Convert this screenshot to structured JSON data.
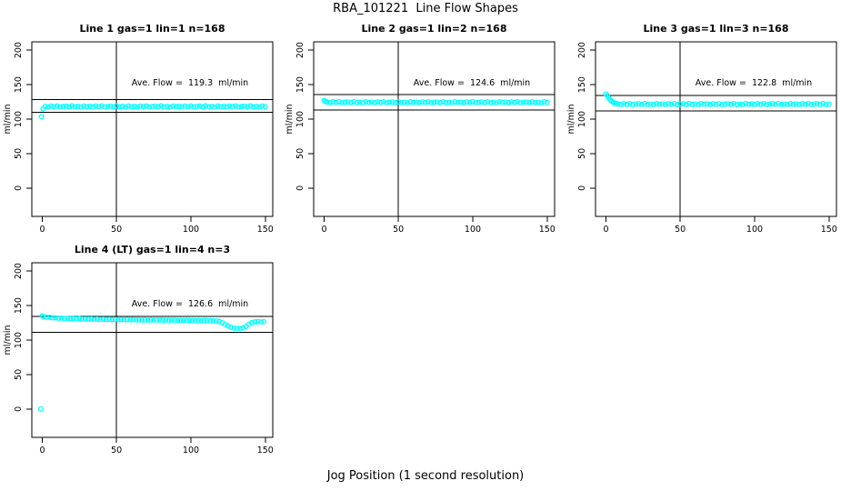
{
  "title": "RBA_101221  Line Flow Shapes",
  "xlabel": "Jog Position (1 second resolution)",
  "ylabel": "ml/min",
  "point_color": "#00FFFF",
  "axis_color": "#000000",
  "background_color": "#FFFFFF",
  "chart_data": [
    {
      "type": "scatter",
      "title": "Line 1 gas=1 lin=1 n=168",
      "ave_flow": 119.3,
      "ave_flow_label": "Ave. Flow =  119.3  ml/min",
      "n": 168,
      "marker": "open-circle",
      "xticks": [
        0,
        50,
        100,
        150
      ],
      "yticks": [
        0,
        50,
        100,
        150,
        200
      ],
      "xlim": [
        -7,
        155
      ],
      "ylim": [
        -41,
        212
      ],
      "vline_x": 50,
      "ref_lines": [
        128.2,
        109.8
      ],
      "points": [
        [
          -0.5,
          103.5
        ],
        [
          0.5,
          114.8
        ],
        [
          2,
          118.5
        ],
        [
          4,
          117.7
        ],
        [
          6,
          118.8
        ],
        [
          8,
          118.0
        ],
        [
          10,
          119.0
        ],
        [
          12,
          117.5
        ],
        [
          14,
          118.3
        ],
        [
          16,
          118.7
        ],
        [
          18,
          117.8
        ],
        [
          20,
          119.1
        ],
        [
          22,
          117.6
        ],
        [
          24,
          118.4
        ],
        [
          26,
          117.4
        ],
        [
          28,
          118.9
        ],
        [
          30,
          118.1
        ],
        [
          32,
          118.5
        ],
        [
          34,
          117.7
        ],
        [
          36,
          118.8
        ],
        [
          38,
          118.0
        ],
        [
          40,
          119.0
        ],
        [
          42,
          117.5
        ],
        [
          44,
          118.3
        ],
        [
          46,
          118.7
        ],
        [
          48,
          117.8
        ],
        [
          50,
          119.1
        ],
        [
          52,
          117.6
        ],
        [
          54,
          118.4
        ],
        [
          56,
          117.4
        ],
        [
          58,
          118.9
        ],
        [
          60,
          118.1
        ],
        [
          62,
          118.5
        ],
        [
          64,
          117.7
        ],
        [
          66,
          118.8
        ],
        [
          68,
          118.0
        ],
        [
          70,
          119.0
        ],
        [
          72,
          117.5
        ],
        [
          74,
          118.3
        ],
        [
          76,
          118.7
        ],
        [
          78,
          117.8
        ],
        [
          80,
          119.1
        ],
        [
          82,
          117.6
        ],
        [
          84,
          118.4
        ],
        [
          86,
          117.4
        ],
        [
          88,
          118.9
        ],
        [
          90,
          118.1
        ],
        [
          92,
          118.5
        ],
        [
          94,
          117.7
        ],
        [
          96,
          118.8
        ],
        [
          98,
          118.0
        ],
        [
          100,
          119.0
        ],
        [
          102,
          117.5
        ],
        [
          104,
          118.3
        ],
        [
          106,
          118.7
        ],
        [
          108,
          117.8
        ],
        [
          110,
          119.1
        ],
        [
          112,
          117.6
        ],
        [
          114,
          118.4
        ],
        [
          116,
          117.4
        ],
        [
          118,
          118.9
        ],
        [
          120,
          118.1
        ],
        [
          122,
          118.5
        ],
        [
          124,
          117.7
        ],
        [
          126,
          118.8
        ],
        [
          128,
          118.0
        ],
        [
          130,
          119.0
        ],
        [
          132,
          117.5
        ],
        [
          134,
          118.3
        ],
        [
          136,
          118.7
        ],
        [
          138,
          117.8
        ],
        [
          140,
          119.1
        ],
        [
          142,
          117.6
        ],
        [
          144,
          118.4
        ],
        [
          146,
          117.4
        ],
        [
          148,
          118.9
        ],
        [
          150,
          118.1
        ]
      ]
    },
    {
      "type": "scatter",
      "title": "Line 2 gas=1 lin=2 n=168",
      "ave_flow": 124.6,
      "ave_flow_label": "Ave. Flow =  124.6  ml/min",
      "n": 168,
      "marker": "open-circle",
      "xticks": [
        0,
        50,
        100,
        150
      ],
      "yticks": [
        0,
        50,
        100,
        150,
        200
      ],
      "xlim": [
        -7,
        155
      ],
      "ylim": [
        -41,
        212
      ],
      "vline_x": 50,
      "ref_lines": [
        135.6,
        113.0
      ],
      "points": [
        [
          0,
          127.0
        ],
        [
          1,
          125.6
        ],
        [
          2,
          124.6
        ],
        [
          4,
          123.8
        ],
        [
          6,
          124.9
        ],
        [
          8,
          124.1
        ],
        [
          10,
          125.1
        ],
        [
          12,
          123.6
        ],
        [
          14,
          124.4
        ],
        [
          16,
          124.8
        ],
        [
          18,
          123.9
        ],
        [
          20,
          125.2
        ],
        [
          22,
          123.7
        ],
        [
          24,
          124.5
        ],
        [
          26,
          123.5
        ],
        [
          28,
          125.0
        ],
        [
          30,
          124.2
        ],
        [
          32,
          124.6
        ],
        [
          34,
          123.8
        ],
        [
          36,
          124.9
        ],
        [
          38,
          124.1
        ],
        [
          40,
          125.1
        ],
        [
          42,
          123.6
        ],
        [
          44,
          124.4
        ],
        [
          46,
          124.8
        ],
        [
          48,
          123.9
        ],
        [
          50,
          125.2
        ],
        [
          52,
          123.7
        ],
        [
          54,
          124.5
        ],
        [
          56,
          123.5
        ],
        [
          58,
          125.0
        ],
        [
          60,
          124.2
        ],
        [
          62,
          124.6
        ],
        [
          64,
          123.8
        ],
        [
          66,
          124.9
        ],
        [
          68,
          124.1
        ],
        [
          70,
          125.1
        ],
        [
          72,
          123.6
        ],
        [
          74,
          124.4
        ],
        [
          76,
          124.8
        ],
        [
          78,
          123.9
        ],
        [
          80,
          125.2
        ],
        [
          82,
          123.7
        ],
        [
          84,
          124.5
        ],
        [
          86,
          123.5
        ],
        [
          88,
          125.0
        ],
        [
          90,
          124.2
        ],
        [
          92,
          124.6
        ],
        [
          94,
          123.8
        ],
        [
          96,
          124.9
        ],
        [
          98,
          124.1
        ],
        [
          100,
          125.1
        ],
        [
          102,
          123.6
        ],
        [
          104,
          124.4
        ],
        [
          106,
          124.8
        ],
        [
          108,
          123.9
        ],
        [
          110,
          125.2
        ],
        [
          112,
          123.7
        ],
        [
          114,
          124.5
        ],
        [
          116,
          123.5
        ],
        [
          118,
          125.0
        ],
        [
          120,
          124.2
        ],
        [
          122,
          124.6
        ],
        [
          124,
          123.8
        ],
        [
          126,
          124.9
        ],
        [
          128,
          124.1
        ],
        [
          130,
          125.1
        ],
        [
          132,
          123.6
        ],
        [
          134,
          124.4
        ],
        [
          136,
          124.8
        ],
        [
          138,
          123.9
        ],
        [
          140,
          125.2
        ],
        [
          142,
          123.7
        ],
        [
          144,
          124.5
        ],
        [
          146,
          123.5
        ],
        [
          148,
          125.0
        ],
        [
          150,
          124.2
        ]
      ]
    },
    {
      "type": "scatter",
      "title": "Line 3 gas=1 lin=3 n=168",
      "ave_flow": 122.8,
      "ave_flow_label": "Ave. Flow =  122.8  ml/min",
      "n": 168,
      "marker": "open-circle",
      "xticks": [
        0,
        50,
        100,
        150
      ],
      "yticks": [
        0,
        50,
        100,
        150,
        200
      ],
      "xlim": [
        -7,
        155
      ],
      "ylim": [
        -41,
        212
      ],
      "vline_x": 50,
      "ref_lines": [
        134.0,
        111.6
      ],
      "points": [
        [
          0,
          136.3
        ],
        [
          1,
          133.9
        ],
        [
          2,
          130.6
        ],
        [
          3,
          127.9
        ],
        [
          4,
          125.7
        ],
        [
          5,
          124.1
        ],
        [
          6,
          123.1
        ],
        [
          7,
          122.5
        ],
        [
          8,
          122.0
        ],
        [
          10,
          121.2
        ],
        [
          12,
          122.3
        ],
        [
          14,
          121.5
        ],
        [
          16,
          122.5
        ],
        [
          18,
          121.0
        ],
        [
          20,
          121.8
        ],
        [
          22,
          122.2
        ],
        [
          24,
          121.3
        ],
        [
          26,
          122.6
        ],
        [
          28,
          121.1
        ],
        [
          30,
          121.9
        ],
        [
          32,
          120.9
        ],
        [
          34,
          122.4
        ],
        [
          36,
          121.6
        ],
        [
          38,
          122.0
        ],
        [
          40,
          121.2
        ],
        [
          42,
          122.3
        ],
        [
          44,
          121.5
        ],
        [
          46,
          122.5
        ],
        [
          48,
          121.0
        ],
        [
          50,
          121.8
        ],
        [
          52,
          122.2
        ],
        [
          54,
          121.3
        ],
        [
          56,
          122.6
        ],
        [
          58,
          121.1
        ],
        [
          60,
          121.9
        ],
        [
          62,
          120.9
        ],
        [
          64,
          122.4
        ],
        [
          66,
          121.6
        ],
        [
          68,
          122.0
        ],
        [
          70,
          121.2
        ],
        [
          72,
          122.3
        ],
        [
          74,
          121.5
        ],
        [
          76,
          122.5
        ],
        [
          78,
          121.0
        ],
        [
          80,
          121.8
        ],
        [
          82,
          122.2
        ],
        [
          84,
          121.3
        ],
        [
          86,
          122.6
        ],
        [
          88,
          121.1
        ],
        [
          90,
          121.9
        ],
        [
          92,
          120.9
        ],
        [
          94,
          122.4
        ],
        [
          96,
          121.6
        ],
        [
          98,
          122.0
        ],
        [
          100,
          121.2
        ],
        [
          102,
          122.3
        ],
        [
          104,
          121.5
        ],
        [
          106,
          122.5
        ],
        [
          108,
          121.0
        ],
        [
          110,
          121.8
        ],
        [
          112,
          122.2
        ],
        [
          114,
          121.3
        ],
        [
          116,
          122.6
        ],
        [
          118,
          121.1
        ],
        [
          120,
          121.9
        ],
        [
          122,
          120.9
        ],
        [
          124,
          122.4
        ],
        [
          126,
          121.6
        ],
        [
          128,
          122.0
        ],
        [
          130,
          121.2
        ],
        [
          132,
          122.3
        ],
        [
          134,
          121.5
        ],
        [
          136,
          122.5
        ],
        [
          138,
          121.0
        ],
        [
          140,
          121.8
        ],
        [
          142,
          122.2
        ],
        [
          144,
          121.3
        ],
        [
          146,
          122.6
        ],
        [
          148,
          121.1
        ],
        [
          150,
          121.9
        ]
      ]
    },
    {
      "type": "scatter",
      "title": "Line 4 (LT) gas=1 lin=4 n=3",
      "ave_flow": 126.6,
      "ave_flow_label": "Ave. Flow =  126.6  ml/min",
      "n": 3,
      "marker": "open-circle",
      "xticks": [
        0,
        50,
        100,
        150
      ],
      "yticks": [
        0,
        50,
        100,
        150,
        200
      ],
      "xlim": [
        -7,
        155
      ],
      "ylim": [
        -41,
        212
      ],
      "vline_x": 50,
      "ref_lines": [
        134.3,
        111.0
      ],
      "points": [
        [
          -1,
          0.3
        ],
        [
          0,
          134.8
        ],
        [
          1,
          133.8
        ],
        [
          3,
          133.1
        ],
        [
          5,
          132.9
        ],
        [
          7,
          132.3
        ],
        [
          9,
          132.2
        ],
        [
          11,
          131.7
        ],
        [
          13,
          131.7
        ],
        [
          15,
          131.3
        ],
        [
          17,
          131.4
        ],
        [
          19,
          131.0
        ],
        [
          21,
          131.1
        ],
        [
          23,
          130.7
        ],
        [
          25,
          130.9
        ],
        [
          27,
          130.4
        ],
        [
          29,
          130.6
        ],
        [
          31,
          130.3
        ],
        [
          33,
          130.5
        ],
        [
          35,
          130.1
        ],
        [
          37,
          130.3
        ],
        [
          39,
          129.9
        ],
        [
          41,
          130.2
        ],
        [
          43,
          129.8
        ],
        [
          45,
          130.0
        ],
        [
          47,
          129.6
        ],
        [
          49,
          129.9
        ],
        [
          51,
          129.5
        ],
        [
          53,
          129.8
        ],
        [
          55,
          129.4
        ],
        [
          57,
          129.7
        ],
        [
          59,
          129.3
        ],
        [
          61,
          129.5
        ],
        [
          63,
          129.2
        ],
        [
          65,
          129.4
        ],
        [
          67,
          129.0
        ],
        [
          69,
          129.3
        ],
        [
          71,
          128.9
        ],
        [
          73,
          129.2
        ],
        [
          75,
          128.8
        ],
        [
          77,
          129.1
        ],
        [
          79,
          128.8
        ],
        [
          81,
          129.0
        ],
        [
          83,
          128.7
        ],
        [
          85,
          128.9
        ],
        [
          87,
          128.6
        ],
        [
          89,
          128.8
        ],
        [
          91,
          128.5
        ],
        [
          93,
          128.7
        ],
        [
          95,
          128.4
        ],
        [
          97,
          128.6
        ],
        [
          99,
          128.3
        ],
        [
          101,
          128.5
        ],
        [
          103,
          128.2
        ],
        [
          105,
          128.4
        ],
        [
          107,
          128.1
        ],
        [
          109,
          128.3
        ],
        [
          111,
          128.0
        ],
        [
          113,
          128.1
        ],
        [
          115,
          127.9
        ],
        [
          117,
          127.8
        ],
        [
          119,
          127.0
        ],
        [
          121,
          125.2
        ],
        [
          123,
          122.8
        ],
        [
          125,
          120.4
        ],
        [
          127,
          118.6
        ],
        [
          129,
          117.3
        ],
        [
          131,
          116.8
        ],
        [
          133,
          117.0
        ],
        [
          135,
          117.6
        ],
        [
          137,
          119.8
        ],
        [
          139,
          123.2
        ],
        [
          141,
          125.4
        ],
        [
          143,
          126.3
        ],
        [
          145,
          126.8
        ],
        [
          147,
          126.2
        ],
        [
          149,
          126.6
        ]
      ]
    }
  ]
}
